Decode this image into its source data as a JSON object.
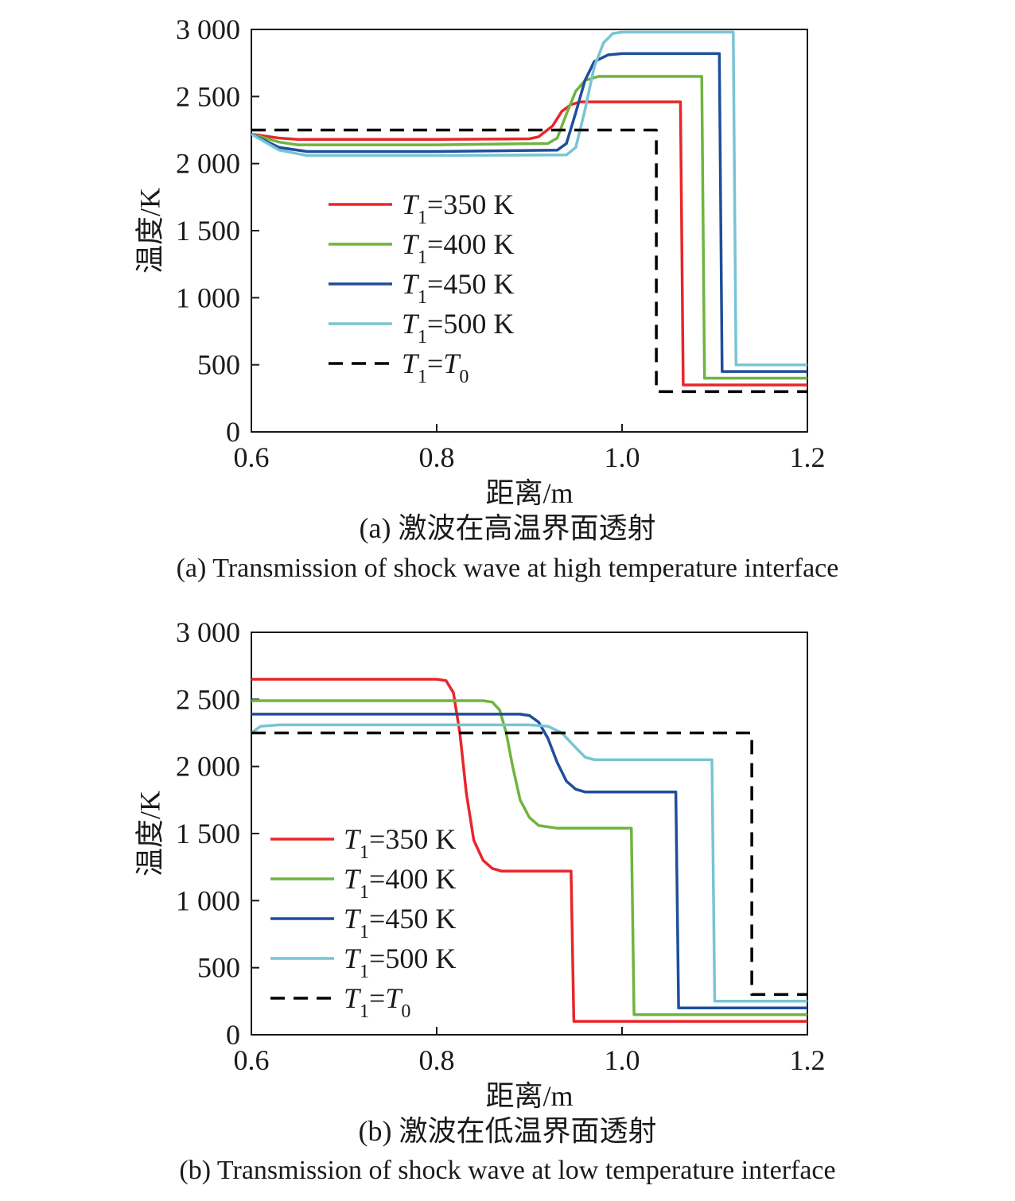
{
  "chart_data": [
    {
      "type": "line",
      "xlabel": "距离/m",
      "ylabel": "温度/K",
      "xlim": [
        0.6,
        1.2
      ],
      "ylim": [
        0,
        3000
      ],
      "xticks": [
        0.6,
        0.8,
        1.0,
        1.2
      ],
      "yticks": [
        0,
        500,
        1000,
        1500,
        2000,
        2500,
        3000
      ],
      "xtick_labels": [
        "0.6",
        "0.8",
        "1.0",
        "1.2"
      ],
      "ytick_labels": [
        "0",
        "500",
        "1 000",
        "1 500",
        "2 000",
        "2 500",
        "3 000"
      ],
      "caption_cn": "(a) 激波在高温界面透射",
      "caption_en": "(a) Transmission of shock wave at high temperature interface",
      "grid": false,
      "legend_placement": "center-left",
      "series": [
        {
          "name": "T1=350 K",
          "label_var": "T",
          "label_sub": "1",
          "label_rest": "=350 K",
          "color": "#e8262a",
          "dash": false,
          "x": [
            0.6,
            0.63,
            0.65,
            0.7,
            0.8,
            0.9,
            0.91,
            0.925,
            0.935,
            0.945,
            0.955,
            1.0,
            1.063,
            1.066,
            1.2
          ],
          "y": [
            2220,
            2190,
            2180,
            2180,
            2180,
            2185,
            2200,
            2280,
            2390,
            2440,
            2460,
            2460,
            2460,
            350,
            350
          ]
        },
        {
          "name": "T1=400 K",
          "label_var": "T",
          "label_sub": "1",
          "label_rest": "=400 K",
          "color": "#6fb43f",
          "dash": false,
          "x": [
            0.6,
            0.63,
            0.65,
            0.7,
            0.8,
            0.92,
            0.93,
            0.94,
            0.95,
            0.96,
            0.975,
            1.0,
            1.086,
            1.089,
            1.2
          ],
          "y": [
            2220,
            2160,
            2140,
            2140,
            2140,
            2150,
            2190,
            2370,
            2540,
            2620,
            2650,
            2650,
            2650,
            400,
            400
          ]
        },
        {
          "name": "T1=450 K",
          "label_var": "T",
          "label_sub": "1",
          "label_rest": "=450 K",
          "color": "#1f4e9b",
          "dash": false,
          "x": [
            0.6,
            0.63,
            0.66,
            0.7,
            0.8,
            0.93,
            0.94,
            0.95,
            0.96,
            0.97,
            0.985,
            1.0,
            1.105,
            1.108,
            1.2
          ],
          "y": [
            2220,
            2120,
            2090,
            2090,
            2090,
            2100,
            2150,
            2380,
            2620,
            2760,
            2810,
            2820,
            2820,
            450,
            450
          ]
        },
        {
          "name": "T1=500 K",
          "label_var": "T",
          "label_sub": "1",
          "label_rest": "=500 K",
          "color": "#79c4d4",
          "dash": false,
          "x": [
            0.6,
            0.63,
            0.66,
            0.7,
            0.8,
            0.94,
            0.95,
            0.96,
            0.97,
            0.98,
            0.99,
            1.0,
            1.1,
            1.12,
            1.123,
            1.2
          ],
          "y": [
            2220,
            2100,
            2060,
            2060,
            2060,
            2065,
            2120,
            2400,
            2720,
            2900,
            2970,
            2980,
            2980,
            2980,
            500,
            500
          ]
        },
        {
          "name": "T1=T0",
          "label_var": "T",
          "label_sub": "1",
          "label_rest": "=",
          "label_var2": "T",
          "label_sub2": "0",
          "color": "#000000",
          "dash": true,
          "x": [
            0.6,
            1.037,
            1.037,
            1.2
          ],
          "y": [
            2250,
            2250,
            300,
            300
          ]
        }
      ]
    },
    {
      "type": "line",
      "xlabel": "距离/m",
      "ylabel": "温度/K",
      "xlim": [
        0.6,
        1.2
      ],
      "ylim": [
        0,
        3000
      ],
      "xticks": [
        0.6,
        0.8,
        1.0,
        1.2
      ],
      "yticks": [
        0,
        500,
        1000,
        1500,
        2000,
        2500,
        3000
      ],
      "xtick_labels": [
        "0.6",
        "0.8",
        "1.0",
        "1.2"
      ],
      "ytick_labels": [
        "0",
        "500",
        "1 000",
        "1 500",
        "2 000",
        "2 500",
        "3 000"
      ],
      "caption_cn": "(b) 激波在低温界面透射",
      "caption_en": "(b) Transmission of shock wave at low temperature interface",
      "grid": false,
      "legend_placement": "lower-left",
      "series": [
        {
          "name": "T1=350 K",
          "label_var": "T",
          "label_sub": "1",
          "label_rest": "=350 K",
          "color": "#e8262a",
          "dash": false,
          "x": [
            0.6,
            0.8,
            0.81,
            0.818,
            0.825,
            0.832,
            0.84,
            0.85,
            0.86,
            0.87,
            0.9,
            0.945,
            0.948,
            1.2
          ],
          "y": [
            2650,
            2650,
            2640,
            2550,
            2250,
            1800,
            1450,
            1300,
            1240,
            1220,
            1220,
            1220,
            100,
            100
          ]
        },
        {
          "name": "T1=400 K",
          "label_var": "T",
          "label_sub": "1",
          "label_rest": "=400 K",
          "color": "#6fb43f",
          "dash": false,
          "x": [
            0.6,
            0.85,
            0.86,
            0.868,
            0.875,
            0.882,
            0.89,
            0.9,
            0.91,
            0.93,
            0.98,
            1.01,
            1.013,
            1.2
          ],
          "y": [
            2490,
            2490,
            2480,
            2420,
            2250,
            2000,
            1750,
            1620,
            1560,
            1540,
            1540,
            1540,
            150,
            150
          ]
        },
        {
          "name": "T1=450 K",
          "label_var": "T",
          "label_sub": "1",
          "label_rest": "=450 K",
          "color": "#1f4e9b",
          "dash": false,
          "x": [
            0.6,
            0.89,
            0.9,
            0.91,
            0.92,
            0.93,
            0.94,
            0.95,
            0.96,
            0.98,
            1.058,
            1.061,
            1.2
          ],
          "y": [
            2390,
            2390,
            2380,
            2330,
            2210,
            2030,
            1890,
            1830,
            1810,
            1810,
            1810,
            200,
            200
          ]
        },
        {
          "name": "T1=500 K",
          "label_var": "T",
          "label_sub": "1",
          "label_rest": "=500 K",
          "color": "#79c4d4",
          "dash": false,
          "x": [
            0.6,
            0.61,
            0.63,
            0.9,
            0.92,
            0.935,
            0.95,
            0.96,
            0.97,
            1.0,
            1.097,
            1.1,
            1.2
          ],
          "y": [
            2250,
            2300,
            2310,
            2310,
            2300,
            2250,
            2140,
            2070,
            2050,
            2050,
            2050,
            250,
            250
          ]
        },
        {
          "name": "T1=T0",
          "label_var": "T",
          "label_sub": "1",
          "label_rest": "=",
          "label_var2": "T",
          "label_sub2": "0",
          "color": "#000000",
          "dash": true,
          "x": [
            0.6,
            1.14,
            1.14,
            1.2
          ],
          "y": [
            2250,
            2250,
            300,
            300
          ]
        }
      ]
    }
  ]
}
